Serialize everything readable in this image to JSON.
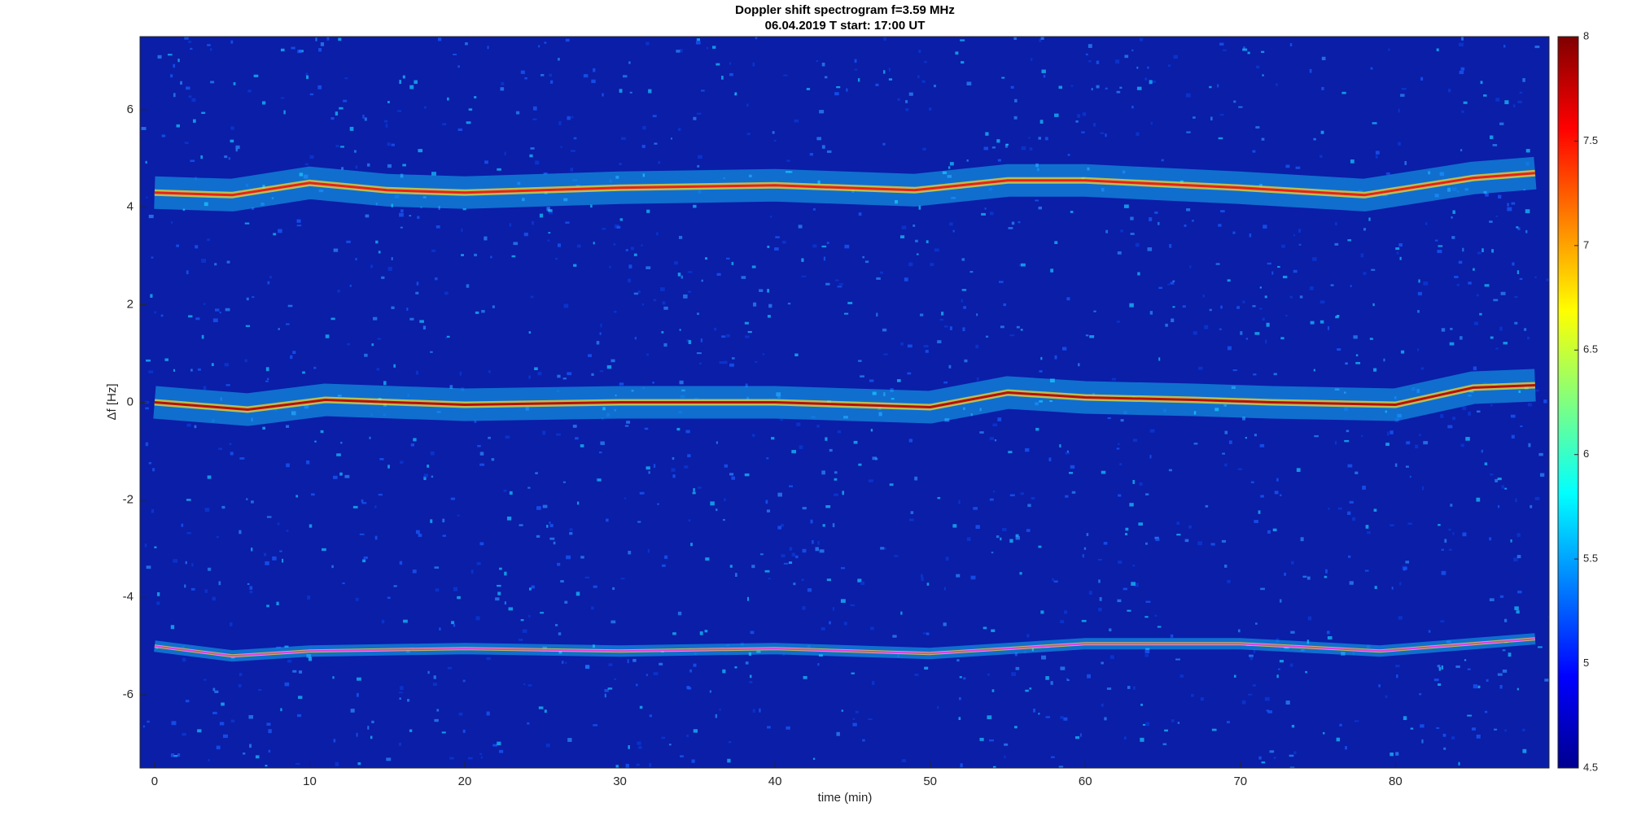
{
  "chart_data": {
    "type": "spectrogram",
    "title": "Doppler shift spectrogram f=3.59 MHz",
    "subtitle": "06.04.2019    T start: 17:00 UT",
    "xlabel": "time (min)",
    "ylabel": "Δf [Hz]",
    "xlim": [
      -0.94,
      89.9
    ],
    "ylim": [
      -7.5,
      7.5
    ],
    "xticks": [
      0,
      10,
      20,
      30,
      40,
      50,
      60,
      70,
      80
    ],
    "yticks": [
      -6,
      -4,
      -2,
      0,
      2,
      4,
      6
    ],
    "background": "#0a1ea8",
    "clim": [
      4.5,
      8
    ],
    "cticks": [
      4.5,
      5,
      5.5,
      6,
      6.5,
      7,
      7.5,
      8
    ],
    "series": [
      {
        "color": "#e8221a",
        "x": [
          0,
          5,
          10,
          15,
          20,
          30,
          40,
          49,
          55,
          60,
          70,
          78,
          85,
          89
        ],
        "values": [
          4.3,
          4.25,
          4.5,
          4.35,
          4.3,
          4.4,
          4.45,
          4.35,
          4.55,
          4.55,
          4.4,
          4.25,
          4.6,
          4.7
        ]
      },
      {
        "color": "#b8100c",
        "x": [
          0,
          6,
          11,
          20,
          30,
          40,
          50,
          55,
          60,
          67,
          72,
          80,
          85,
          89
        ],
        "values": [
          0,
          -0.15,
          0.05,
          -0.05,
          0,
          0,
          -0.1,
          0.2,
          0.1,
          0.05,
          0,
          -0.05,
          0.3,
          0.35
        ]
      },
      {
        "color": "#e040e0",
        "x": [
          0,
          5,
          10,
          20,
          30,
          40,
          50,
          60,
          70,
          79,
          89
        ],
        "values": [
          -5,
          -5.2,
          -5.1,
          -5.05,
          -5.1,
          -5.05,
          -5.15,
          -4.95,
          -4.95,
          -5.1,
          -4.85
        ]
      }
    ]
  }
}
